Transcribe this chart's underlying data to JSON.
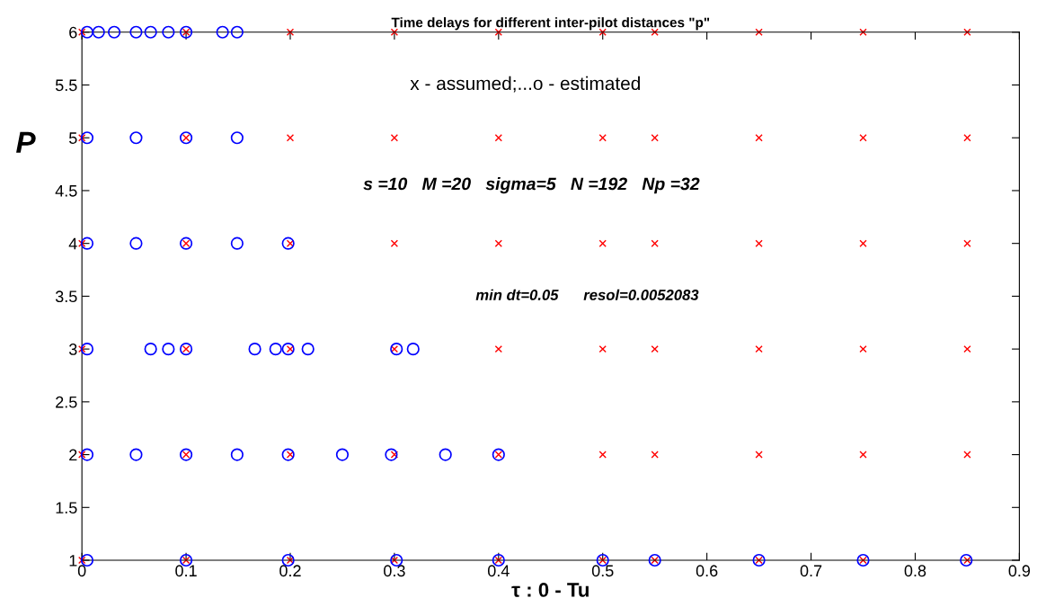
{
  "chart_data": {
    "type": "scatter",
    "title": "Time delays for different inter-pilot distances \"p\"",
    "xlabel": "τ : 0 - Tu",
    "ylabel": "P",
    "annotations": [
      "x - assumed;...o - estimated",
      "s =10   M =20   sigma=5   N =192   Np =32",
      "min dt=0.05      resol=0.0052083"
    ],
    "xlim": [
      0,
      0.9
    ],
    "ylim": [
      1,
      6
    ],
    "xticks": [
      0,
      0.1,
      0.2,
      0.3,
      0.4,
      0.5,
      0.6,
      0.7,
      0.8,
      0.9
    ],
    "yticks": [
      1,
      1.5,
      2,
      2.5,
      3,
      3.5,
      4,
      4.5,
      5,
      5.5,
      6
    ],
    "grid": false,
    "legend": false,
    "series": [
      {
        "color": "#ff0000",
        "marker": "cross",
        "x": [
          0,
          0.1,
          0.2,
          0.3,
          0.4,
          0.5,
          0.55,
          0.65,
          0.75,
          0.85,
          0,
          0.1,
          0.2,
          0.3,
          0.4,
          0.5,
          0.55,
          0.65,
          0.75,
          0.85,
          0,
          0.1,
          0.2,
          0.3,
          0.4,
          0.5,
          0.55,
          0.65,
          0.75,
          0.85,
          0,
          0.1,
          0.2,
          0.3,
          0.4,
          0.5,
          0.55,
          0.65,
          0.75,
          0.85,
          0,
          0.1,
          0.2,
          0.3,
          0.4,
          0.5,
          0.55,
          0.65,
          0.75,
          0.85,
          0,
          0.1,
          0.2,
          0.3,
          0.4,
          0.5,
          0.55,
          0.65,
          0.75,
          0.85
        ],
        "values": [
          6,
          6,
          6,
          6,
          6,
          6,
          6,
          6,
          6,
          6,
          5,
          5,
          5,
          5,
          5,
          5,
          5,
          5,
          5,
          5,
          4,
          4,
          4,
          4,
          4,
          4,
          4,
          4,
          4,
          4,
          3,
          3,
          3,
          3,
          3,
          3,
          3,
          3,
          3,
          3,
          2,
          2,
          2,
          2,
          2,
          2,
          2,
          2,
          2,
          2,
          1,
          1,
          1,
          1,
          1,
          1,
          1,
          1,
          1,
          1
        ]
      },
      {
        "color": "#0000ff",
        "marker": "circle",
        "x": [
          0.005,
          0.016,
          0.031,
          0.052,
          0.066,
          0.083,
          0.1,
          0.135,
          0.149,
          0.005,
          0.052,
          0.1,
          0.149,
          0.005,
          0.052,
          0.1,
          0.149,
          0.198,
          0.005,
          0.066,
          0.083,
          0.1,
          0.166,
          0.186,
          0.198,
          0.217,
          0.302,
          0.318,
          0.005,
          0.052,
          0.1,
          0.149,
          0.198,
          0.25,
          0.297,
          0.349,
          0.4,
          0.005,
          0.1,
          0.198,
          0.302,
          0.4,
          0.5,
          0.55,
          0.65,
          0.75,
          0.849
        ],
        "values": [
          6,
          6,
          6,
          6,
          6,
          6,
          6,
          6,
          6,
          5,
          5,
          5,
          5,
          4,
          4,
          4,
          4,
          4,
          3,
          3,
          3,
          3,
          3,
          3,
          3,
          3,
          3,
          3,
          2,
          2,
          2,
          2,
          2,
          2,
          2,
          2,
          2,
          1,
          1,
          1,
          1,
          1,
          1,
          1,
          1,
          1,
          1
        ]
      }
    ]
  }
}
